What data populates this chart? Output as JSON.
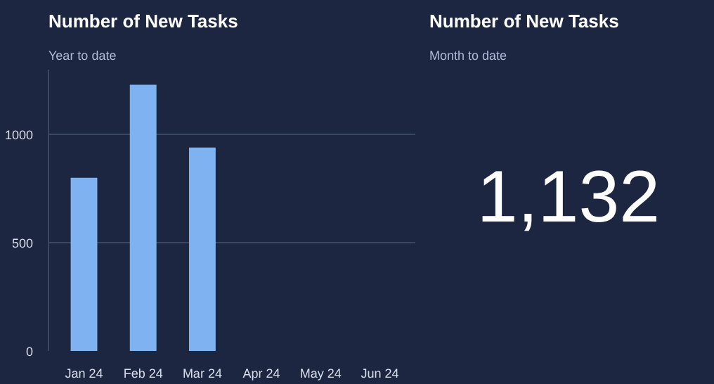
{
  "chart_data": [
    {
      "type": "bar",
      "title": "Number of New Tasks",
      "subtitle": "Year to date",
      "categories": [
        "Jan 24",
        "Feb 24",
        "Mar 24",
        "Apr 24",
        "May 24",
        "Jun 24"
      ],
      "values": [
        800,
        1230,
        940,
        null,
        null,
        null
      ],
      "color": "#7fb2f0",
      "ylim": [
        0,
        1300
      ],
      "yticks": [
        0,
        500,
        1000
      ],
      "grid": "y"
    },
    {
      "type": "other",
      "title": "Number of New Tasks",
      "subtitle": "Month to date",
      "annotations": [
        "1,132"
      ]
    }
  ]
}
